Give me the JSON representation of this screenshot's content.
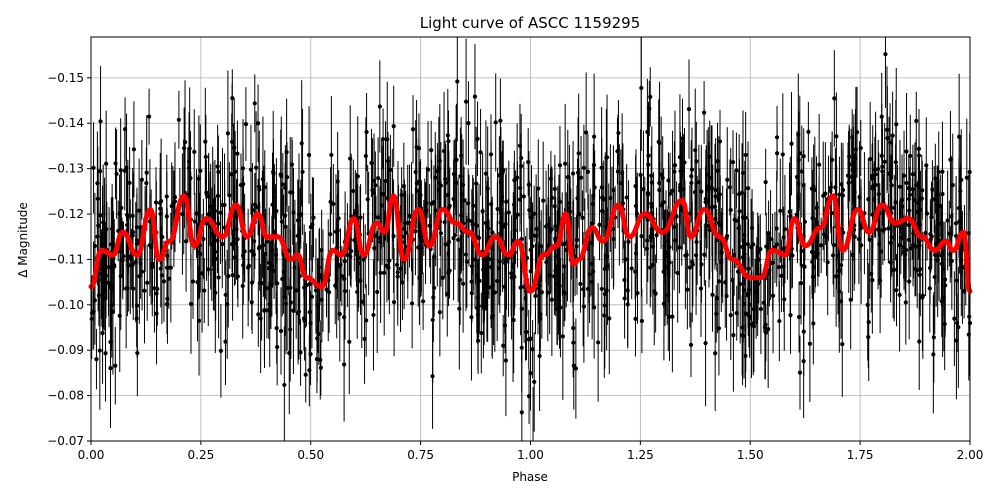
{
  "chart_data": {
    "type": "scatter",
    "title": "Light curve of ASCC 1159295",
    "xlabel": "Phase",
    "ylabel": "Δ Magnitude",
    "xlim": [
      0.0,
      2.0
    ],
    "ylim": [
      -0.07,
      -0.159
    ],
    "y_inverted": true,
    "grid": true,
    "x_ticks": [
      0.0,
      0.25,
      0.5,
      0.75,
      1.0,
      1.25,
      1.5,
      1.75,
      2.0
    ],
    "x_tick_labels": [
      "0.00",
      "0.25",
      "0.50",
      "0.75",
      "1.00",
      "1.25",
      "1.50",
      "1.75",
      "2.00"
    ],
    "y_ticks": [
      -0.07,
      -0.08,
      -0.09,
      -0.1,
      -0.11,
      -0.12,
      -0.13,
      -0.14,
      -0.15
    ],
    "y_tick_labels": [
      "−0.07",
      "−0.08",
      "−0.09",
      "−0.10",
      "−0.11",
      "−0.12",
      "−0.13",
      "−0.14",
      "−0.15"
    ],
    "series": [
      {
        "kind": "observations",
        "color": "#000000",
        "style": "points with error bars",
        "y_mean": -0.114,
        "y_scatter_range": [
          -0.07,
          -0.159
        ],
        "typical_error": 0.01
      },
      {
        "kind": "model",
        "color": "#ff0000",
        "style": "thick line",
        "x": [
          0.0,
          0.024,
          0.05,
          0.072,
          0.105,
          0.135,
          0.155,
          0.178,
          0.212,
          0.235,
          0.262,
          0.3,
          0.33,
          0.355,
          0.38,
          0.4,
          0.425,
          0.455,
          0.47,
          0.49,
          0.525,
          0.55,
          0.57,
          0.598,
          0.62,
          0.65,
          0.668,
          0.688,
          0.712,
          0.745,
          0.77,
          0.8,
          0.83,
          0.86,
          0.89,
          0.92,
          0.95,
          0.972,
          1.0,
          1.03,
          1.06,
          1.08,
          1.098,
          1.11,
          1.14,
          1.165,
          1.2,
          1.225,
          1.26,
          1.3,
          1.345,
          1.365,
          1.395,
          1.43,
          1.46,
          1.5,
          1.525,
          1.55,
          1.58,
          1.6,
          1.625,
          1.66,
          1.688,
          1.71,
          1.745,
          1.77,
          1.8,
          1.83,
          1.86,
          1.89,
          1.92,
          1.945,
          1.962,
          1.985,
          2.0
        ],
        "y": [
          -0.104,
          -0.112,
          -0.111,
          -0.116,
          -0.111,
          -0.121,
          -0.11,
          -0.114,
          -0.124,
          -0.113,
          -0.119,
          -0.115,
          -0.122,
          -0.115,
          -0.12,
          -0.115,
          -0.115,
          -0.11,
          -0.111,
          -0.106,
          -0.104,
          -0.112,
          -0.111,
          -0.119,
          -0.111,
          -0.118,
          -0.116,
          -0.124,
          -0.11,
          -0.121,
          -0.113,
          -0.121,
          -0.118,
          -0.116,
          -0.111,
          -0.115,
          -0.111,
          -0.114,
          -0.103,
          -0.111,
          -0.113,
          -0.12,
          -0.109,
          -0.11,
          -0.117,
          -0.114,
          -0.122,
          -0.115,
          -0.12,
          -0.116,
          -0.123,
          -0.115,
          -0.121,
          -0.115,
          -0.11,
          -0.106,
          -0.106,
          -0.112,
          -0.111,
          -0.119,
          -0.113,
          -0.117,
          -0.124,
          -0.112,
          -0.121,
          -0.116,
          -0.122,
          -0.118,
          -0.119,
          -0.115,
          -0.112,
          -0.114,
          -0.112,
          -0.116,
          -0.103
        ]
      }
    ]
  }
}
